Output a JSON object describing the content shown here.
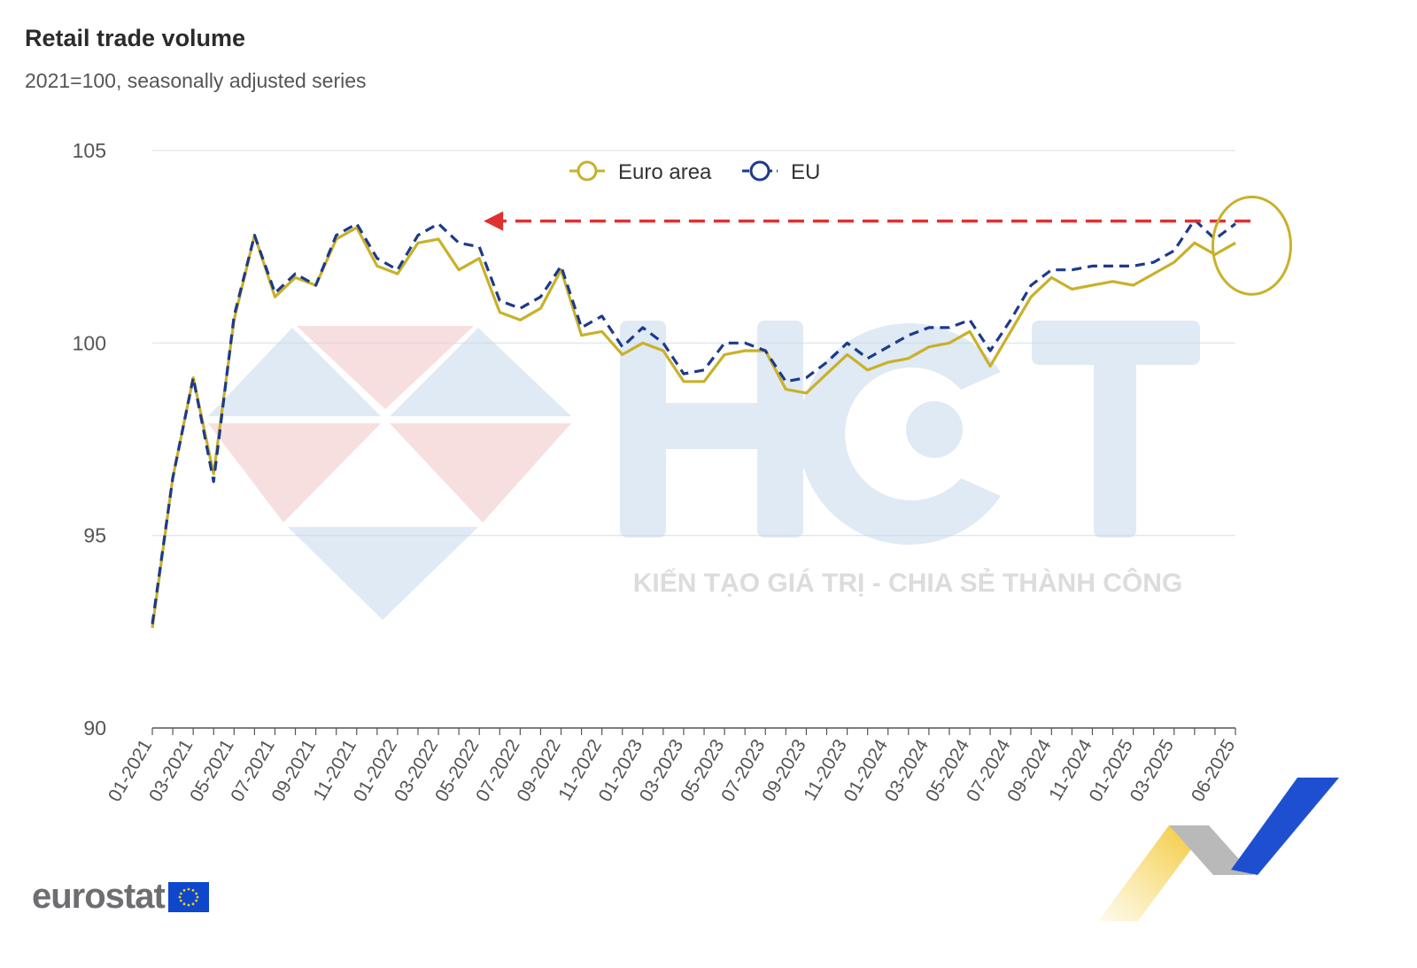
{
  "chart_data": {
    "type": "line",
    "title": "Retail trade volume",
    "subtitle": "2021=100, seasonally adjusted series",
    "xlabel": "",
    "ylabel": "",
    "ylim": [
      90,
      105
    ],
    "yticks": [
      90,
      95,
      100,
      105
    ],
    "grid": true,
    "legend_position": "top-center",
    "x": [
      "01-2021",
      "02-2021",
      "03-2021",
      "04-2021",
      "05-2021",
      "06-2021",
      "07-2021",
      "08-2021",
      "09-2021",
      "10-2021",
      "11-2021",
      "12-2021",
      "01-2022",
      "02-2022",
      "03-2022",
      "04-2022",
      "05-2022",
      "06-2022",
      "07-2022",
      "08-2022",
      "09-2022",
      "10-2022",
      "11-2022",
      "12-2022",
      "01-2023",
      "02-2023",
      "03-2023",
      "04-2023",
      "05-2023",
      "06-2023",
      "07-2023",
      "08-2023",
      "09-2023",
      "10-2023",
      "11-2023",
      "12-2023",
      "01-2024",
      "02-2024",
      "03-2024",
      "04-2024",
      "05-2024",
      "06-2024",
      "07-2024",
      "08-2024",
      "09-2024",
      "10-2024",
      "11-2024",
      "12-2024",
      "01-2025",
      "02-2025",
      "03-2025",
      "04-2025",
      "05-2025",
      "06-2025"
    ],
    "xtick_labels": [
      "01-2021",
      "03-2021",
      "05-2021",
      "07-2021",
      "09-2021",
      "11-2021",
      "01-2022",
      "03-2022",
      "05-2022",
      "07-2022",
      "09-2022",
      "11-2022",
      "01-2023",
      "03-2023",
      "05-2023",
      "07-2023",
      "09-2023",
      "11-2023",
      "01-2024",
      "03-2024",
      "05-2024",
      "07-2024",
      "09-2024",
      "11-2024",
      "01-2025",
      "03-2025",
      "06-2025"
    ],
    "series": [
      {
        "name": "Euro area",
        "color": "#c8b12a",
        "style": "solid",
        "values": [
          92.6,
          96.5,
          99.1,
          96.6,
          100.6,
          102.8,
          101.2,
          101.7,
          101.5,
          102.7,
          103.0,
          102.0,
          101.8,
          102.6,
          102.7,
          101.9,
          102.2,
          100.8,
          100.6,
          100.9,
          101.9,
          100.2,
          100.3,
          99.7,
          100.0,
          99.8,
          99.0,
          99.0,
          99.7,
          99.8,
          99.8,
          98.8,
          98.7,
          99.2,
          99.7,
          99.3,
          99.5,
          99.6,
          99.9,
          100.0,
          100.3,
          99.4,
          100.3,
          101.2,
          101.7,
          101.4,
          101.5,
          101.6,
          101.5,
          101.8,
          102.1,
          102.6,
          102.3,
          102.6
        ]
      },
      {
        "name": "EU",
        "color": "#1d3a8a",
        "style": "dashed",
        "values": [
          92.7,
          96.5,
          99.1,
          96.4,
          100.7,
          102.8,
          101.3,
          101.8,
          101.5,
          102.8,
          103.1,
          102.2,
          101.9,
          102.8,
          103.1,
          102.6,
          102.5,
          101.1,
          100.9,
          101.2,
          102.0,
          100.4,
          100.7,
          99.9,
          100.4,
          100.0,
          99.2,
          99.3,
          100.0,
          100.0,
          99.8,
          99.0,
          99.1,
          99.5,
          100.0,
          99.6,
          99.9,
          100.2,
          100.4,
          100.4,
          100.6,
          99.8,
          100.6,
          101.5,
          101.9,
          101.9,
          102.0,
          102.0,
          102.0,
          102.1,
          102.4,
          103.2,
          102.7,
          103.1
        ]
      }
    ],
    "annotations": {
      "arrow_color": "#e03030",
      "arrow_from_index": 52,
      "arrow_to_index": 15,
      "arrow_value": 103.1,
      "circle_color": "#c8b12a",
      "circle_center_index": 52.5,
      "circle_center_value": 102.6
    }
  },
  "branding": {
    "source_logo_text": "eurostat",
    "watermark_letters": "HCT",
    "watermark_tagline": "KIẾN TẠO GIÁ TRỊ - CHIA SẺ THÀNH CÔNG"
  }
}
